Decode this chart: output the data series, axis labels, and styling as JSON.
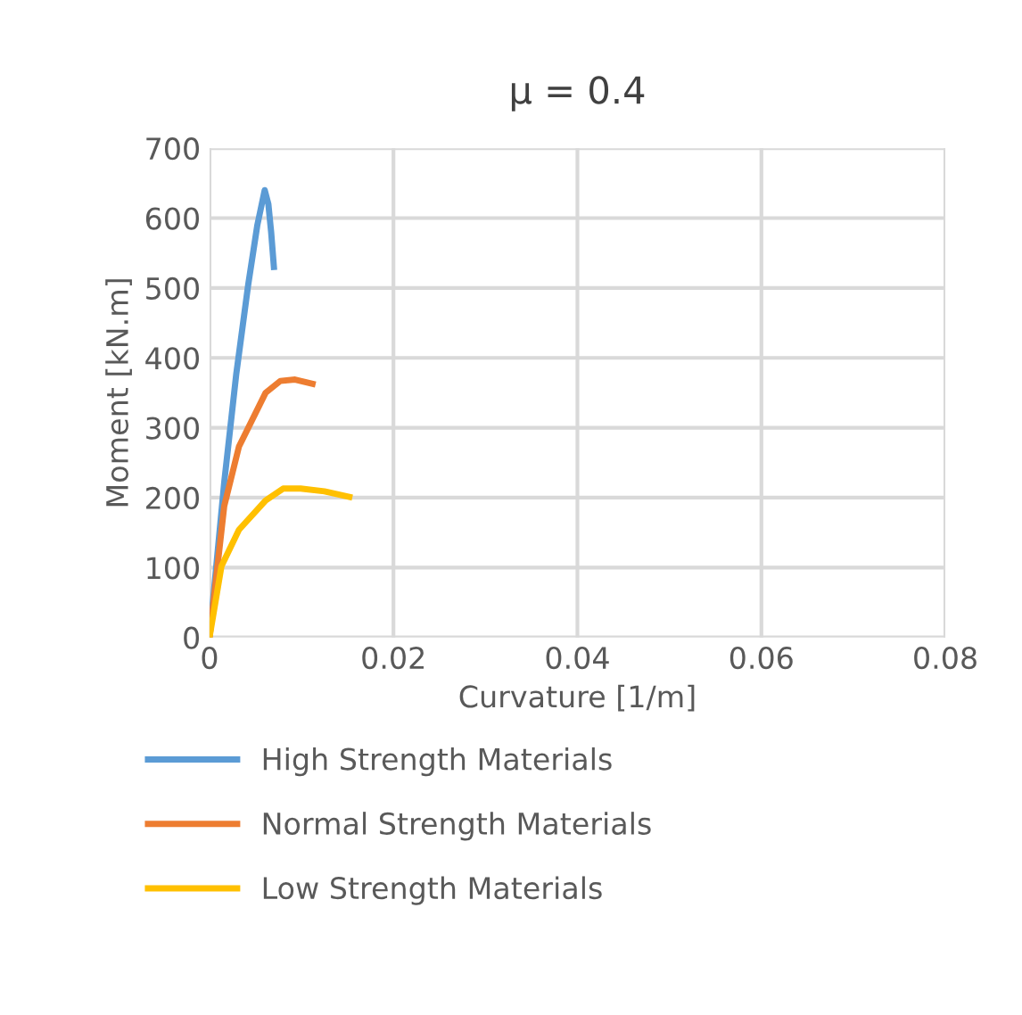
{
  "chart_data": {
    "type": "line",
    "title": "μ = 0.4",
    "xlabel": "Curvature [1/m]",
    "ylabel": "Moment [kN.m]",
    "xlim": [
      0,
      0.08
    ],
    "xticks": [
      {
        "value": 0,
        "label": "0"
      },
      0.02,
      0.04,
      0.06,
      0.08
    ],
    "ylim": [
      0,
      700
    ],
    "yticks": [
      0,
      100,
      200,
      300,
      400,
      500,
      600,
      700
    ],
    "grid": true,
    "legend": "bottom",
    "marker": "none",
    "line_style": "solid",
    "series": [
      {
        "name": "High Strength Materials",
        "color": "#5b9bd5",
        "x": [
          0,
          0.0016,
          0.0029,
          0.0042,
          0.0052,
          0.006,
          0.0064,
          0.0067,
          0.007
        ],
        "values": [
          0,
          222,
          376,
          504,
          590,
          640,
          620,
          580,
          530
        ]
      },
      {
        "name": "Normal Strength Materials",
        "color": "#ed7d31",
        "x": [
          0,
          0.0016,
          0.0032,
          0.0061,
          0.0077,
          0.0093,
          0.0112
        ],
        "values": [
          0,
          188,
          273,
          350,
          367,
          369,
          363
        ]
      },
      {
        "name": "Low Strength Materials",
        "color": "#ffc000",
        "x": [
          0,
          0.0013,
          0.0032,
          0.0061,
          0.008,
          0.0099,
          0.0125,
          0.0152
        ],
        "values": [
          0,
          102,
          154,
          196,
          213,
          213,
          209,
          201
        ]
      }
    ]
  }
}
